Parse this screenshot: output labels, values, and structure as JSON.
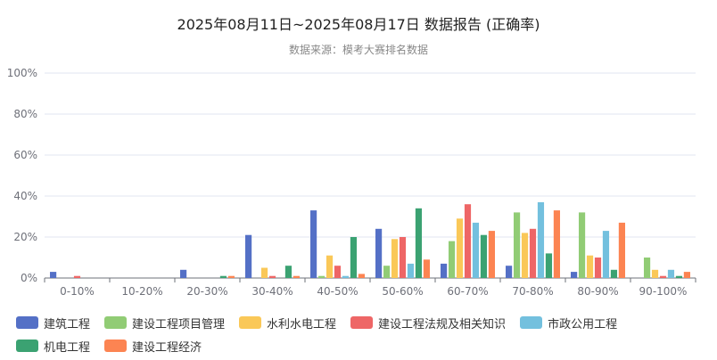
{
  "chart_data": {
    "type": "bar",
    "title": "2025年08月11日~2025年08月17日 数据报告 (正确率)",
    "subtitle": "数据来源：模考大赛排名数据",
    "categories": [
      "0-10%",
      "10-20%",
      "20-30%",
      "30-40%",
      "40-50%",
      "50-60%",
      "60-70%",
      "70-80%",
      "80-90%",
      "90-100%"
    ],
    "ylim": [
      0,
      100
    ],
    "yticks": [
      "0%",
      "20%",
      "40%",
      "60%",
      "80%",
      "100%"
    ],
    "grid": true,
    "legend_position": "bottom-left",
    "series": [
      {
        "name": "建筑工程",
        "color": "#5470c6",
        "values": [
          3,
          0,
          4,
          21,
          33,
          24,
          7,
          6,
          3,
          0
        ]
      },
      {
        "name": "建设工程项目管理",
        "color": "#91cc75",
        "values": [
          0,
          0,
          0,
          0,
          1,
          6,
          18,
          32,
          32,
          10
        ]
      },
      {
        "name": "水利水电工程",
        "color": "#fac858",
        "values": [
          0,
          0,
          0,
          5,
          11,
          19,
          29,
          22,
          11,
          4
        ]
      },
      {
        "name": "建设工程法规及相关知识",
        "color": "#ee6666",
        "values": [
          1,
          0,
          0,
          1,
          6,
          20,
          36,
          24,
          10,
          1
        ]
      },
      {
        "name": "市政公用工程",
        "color": "#73c0de",
        "values": [
          0,
          0,
          0,
          0,
          1,
          7,
          27,
          37,
          23,
          4
        ]
      },
      {
        "name": "机电工程",
        "color": "#3ba272",
        "values": [
          0,
          0,
          1,
          6,
          20,
          34,
          21,
          12,
          4,
          1
        ]
      },
      {
        "name": "建设工程经济",
        "color": "#fc8452",
        "values": [
          0,
          0,
          1,
          1,
          2,
          9,
          23,
          33,
          27,
          3
        ]
      }
    ]
  }
}
